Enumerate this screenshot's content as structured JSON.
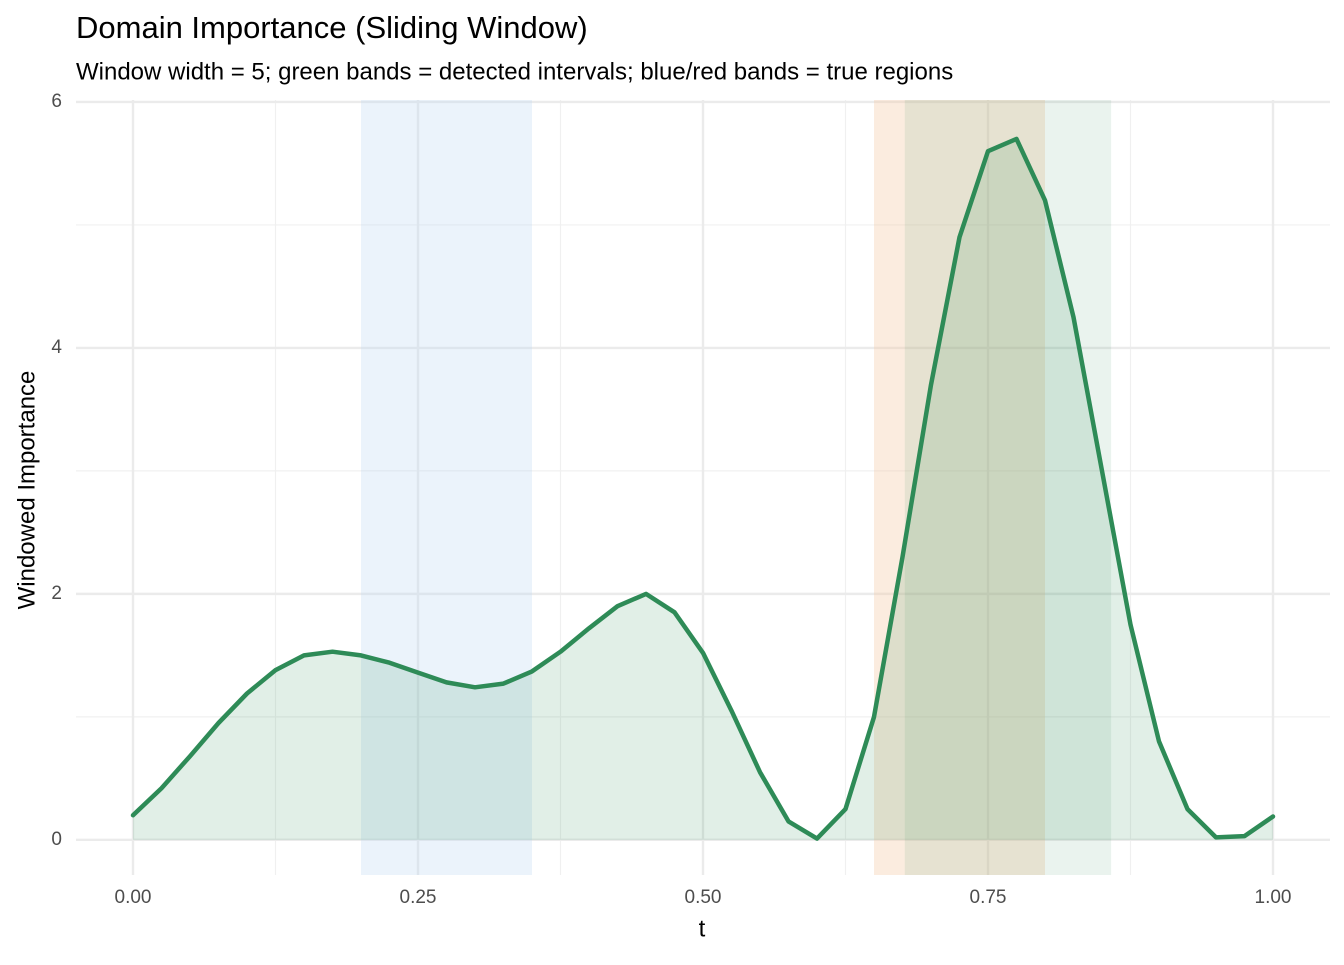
{
  "chart_data": {
    "type": "line",
    "title": "Domain Importance (Sliding Window)",
    "subtitle": "Window width = 5; green bands = detected intervals; blue/red bands = true regions",
    "x_label": "t",
    "y_label": "Windowed Importance",
    "x": [
      0,
      0.025,
      0.05,
      0.075,
      0.1,
      0.125,
      0.15,
      0.175,
      0.2,
      0.225,
      0.25,
      0.275,
      0.3,
      0.325,
      0.35,
      0.375,
      0.4,
      0.425,
      0.45,
      0.475,
      0.5,
      0.525,
      0.55,
      0.575,
      0.6,
      0.625,
      0.65,
      0.675,
      0.7,
      0.725,
      0.75,
      0.775,
      0.8,
      0.825,
      0.85,
      0.875,
      0.9,
      0.925,
      0.95,
      0.975,
      1
    ],
    "values": [
      0.2,
      0.42,
      0.68,
      0.95,
      1.19,
      1.38,
      1.5,
      1.53,
      1.5,
      1.44,
      1.36,
      1.28,
      1.24,
      1.27,
      1.37,
      1.53,
      1.72,
      1.9,
      2.0,
      1.85,
      1.52,
      1.05,
      0.55,
      0.15,
      0.01,
      0.25,
      1.0,
      2.3,
      3.7,
      4.9,
      5.6,
      5.7,
      5.2,
      4.25,
      3.0,
      1.75,
      0.8,
      0.25,
      0.02,
      0.03,
      0.19
    ],
    "color": "#2e8b57",
    "area_opacity": 0.14,
    "bands": [
      {
        "start": 0.2,
        "end": 0.35,
        "color": "#bcd6f2",
        "opacity": 0.3
      },
      {
        "start": 0.65,
        "end": 0.8,
        "color": "#f4c8a4",
        "opacity": 0.35
      },
      {
        "start": 0.677,
        "end": 0.858,
        "color": "#2e8b57",
        "opacity": 0.1
      }
    ],
    "xlim": [
      -0.05,
      1.05
    ],
    "ylim": [
      -0.286,
      6.016
    ],
    "xticks": [
      {
        "value": 0,
        "label": "0.00"
      },
      0.25,
      {
        "value": 0.5,
        "label": "0.50"
      },
      0.75,
      {
        "value": 1,
        "label": "1.00"
      }
    ],
    "yticks": [
      0,
      2,
      4,
      6
    ],
    "xminor": [
      0.125,
      0.375,
      0.625,
      0.875
    ],
    "yminor": [
      1,
      3,
      5
    ],
    "grid": true
  }
}
